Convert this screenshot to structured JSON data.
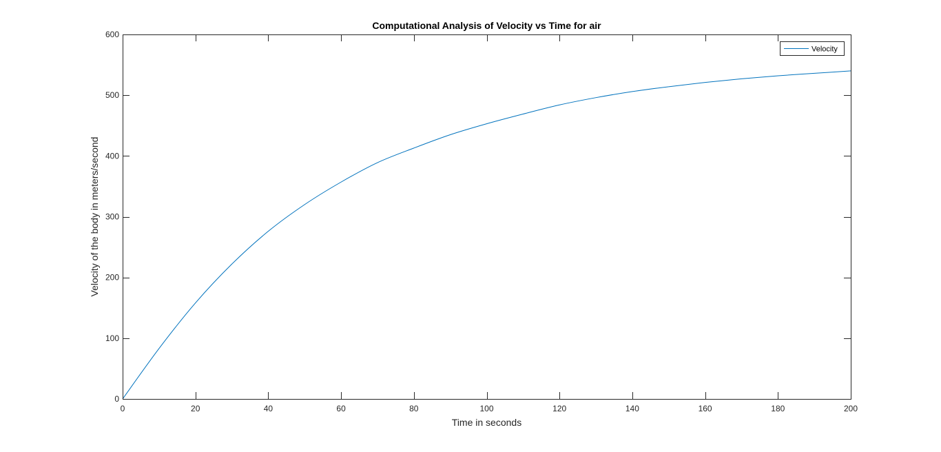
{
  "chart_data": {
    "type": "line",
    "title": "Computational Analysis of Velocity vs Time for air",
    "xlabel": "Time in seconds",
    "ylabel": "Velocity of the body in meters/second",
    "xlim": [
      0,
      200
    ],
    "ylim": [
      0,
      600
    ],
    "xticks": [
      "0",
      "20",
      "40",
      "60",
      "80",
      "100",
      "120",
      "140",
      "160",
      "180",
      "200"
    ],
    "yticks": [
      "0",
      "100",
      "200",
      "300",
      "400",
      "500",
      "600"
    ],
    "grid": false,
    "legend_position": "top-right",
    "series": [
      {
        "name": "Velocity",
        "color": "#0072bd",
        "x": [
          0,
          10,
          20,
          30,
          40,
          50,
          60,
          70,
          80,
          90,
          100,
          110,
          120,
          130,
          140,
          150,
          160,
          170,
          180,
          190,
          200
        ],
        "y": [
          0,
          83,
          158,
          222,
          276,
          320,
          357,
          389,
          413,
          435,
          453,
          469,
          484,
          496,
          506,
          514,
          521,
          527,
          532,
          536,
          540
        ]
      }
    ]
  }
}
